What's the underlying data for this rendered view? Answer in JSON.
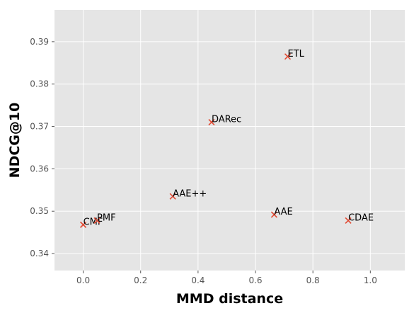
{
  "chart_data": {
    "type": "scatter",
    "title": "",
    "xlabel": "MMD distance",
    "ylabel": "NDCG@10",
    "xlim": [
      -0.1,
      1.12
    ],
    "ylim": [
      0.336,
      0.3975
    ],
    "x_ticks": [
      0.0,
      0.2,
      0.4,
      0.6,
      0.8,
      1.0
    ],
    "x_tick_labels": [
      "0.0",
      "0.2",
      "0.4",
      "0.6",
      "0.8",
      "1.0"
    ],
    "y_ticks": [
      0.34,
      0.35,
      0.36,
      0.37,
      0.38,
      0.39
    ],
    "y_tick_labels": [
      "0.34",
      "0.35",
      "0.36",
      "0.37",
      "0.38",
      "0.39"
    ],
    "grid": true,
    "marker": "x",
    "colors": {
      "marker": "#E24A33",
      "background": "#E5E5E5",
      "grid": "#FFFFFF"
    },
    "points": [
      {
        "label": "CMF",
        "x": 0.0,
        "y": 0.3468
      },
      {
        "label": "PMF",
        "x": 0.048,
        "y": 0.3478
      },
      {
        "label": "AAE++",
        "x": 0.312,
        "y": 0.3535
      },
      {
        "label": "DARec",
        "x": 0.447,
        "y": 0.371
      },
      {
        "label": "AAE",
        "x": 0.665,
        "y": 0.3492
      },
      {
        "label": "ETL",
        "x": 0.712,
        "y": 0.3865
      },
      {
        "label": "CDAE",
        "x": 0.923,
        "y": 0.3478
      }
    ]
  }
}
